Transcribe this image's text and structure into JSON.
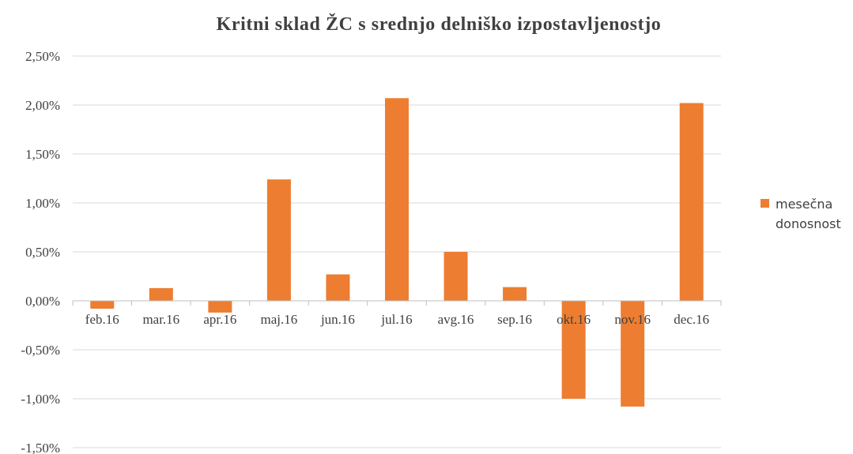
{
  "chart_data": {
    "type": "bar",
    "title": "Kritni sklad ŽC s srednjo delniško izpostavljenostjo",
    "categories": [
      "feb.16",
      "mar.16",
      "apr.16",
      "maj.16",
      "jun.16",
      "jul.16",
      "avg.16",
      "sep.16",
      "okt.16",
      "nov.16",
      "dec.16"
    ],
    "series": [
      {
        "name": "mesečna donosnost",
        "color": "#ED7D31",
        "values": [
          -0.08,
          0.13,
          -0.12,
          1.24,
          0.27,
          2.07,
          0.5,
          0.14,
          -1.0,
          -1.08,
          2.02
        ]
      }
    ],
    "ylim": [
      -1.5,
      2.5
    ],
    "yticks": [
      "-1,50%",
      "-1,00%",
      "-0,50%",
      "0,00%",
      "0,50%",
      "1,00%",
      "1,50%",
      "2,00%",
      "2,50%"
    ],
    "legend": {
      "position": "right",
      "label_lines": [
        "mesečna",
        "donosnost"
      ]
    },
    "grid": true
  }
}
